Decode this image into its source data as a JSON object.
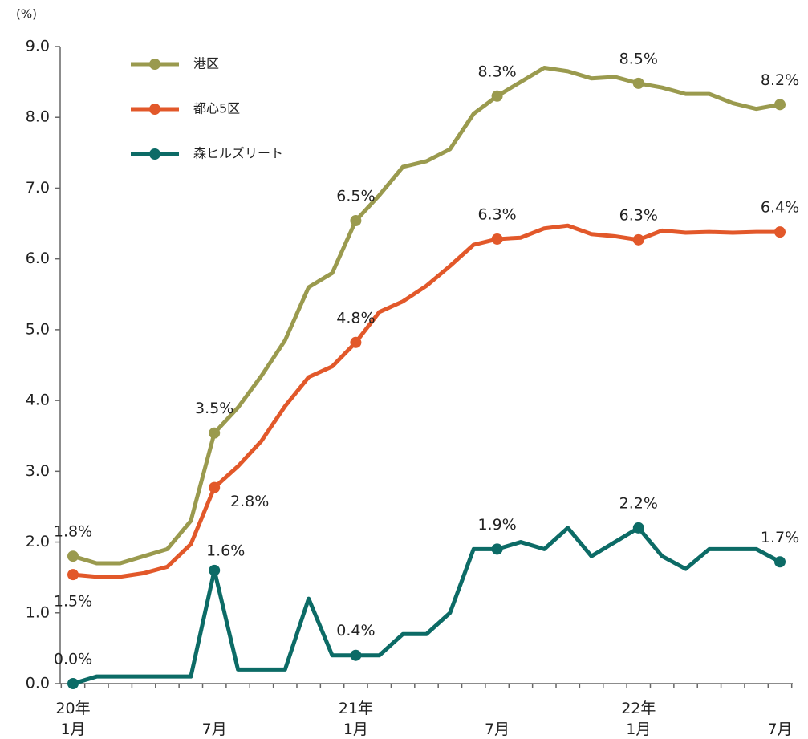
{
  "chart_data": {
    "type": "line",
    "y_label": "(%)",
    "categories": [
      "20年\n1月",
      null,
      null,
      null,
      null,
      null,
      "7月",
      null,
      null,
      null,
      null,
      null,
      "21年\n1月",
      null,
      null,
      null,
      null,
      null,
      "7月",
      null,
      null,
      null,
      null,
      null,
      "22年\n1月",
      null,
      null,
      null,
      null,
      null,
      "7月"
    ],
    "ylim": [
      0,
      9
    ],
    "yticks": [
      {
        "value": 0,
        "label": "0.0"
      },
      {
        "value": 1,
        "label": "1.0"
      },
      {
        "value": 2,
        "label": "2.0"
      },
      {
        "value": 3,
        "label": "3.0"
      },
      {
        "value": 4,
        "label": "4.0"
      },
      {
        "value": 5,
        "label": "5.0"
      },
      {
        "value": 6,
        "label": "6.0"
      },
      {
        "value": 7,
        "label": "7.0"
      },
      {
        "value": 8,
        "label": "8.0"
      },
      {
        "value": 9,
        "label": "9.0"
      }
    ],
    "legend": "upper left",
    "series": [
      {
        "name": "港区",
        "color": "#9a9a4e",
        "values": [
          1.8,
          1.7,
          1.7,
          1.8,
          1.9,
          2.3,
          3.54,
          3.9,
          4.35,
          4.85,
          5.6,
          5.8,
          6.54,
          6.9,
          7.3,
          7.38,
          7.55,
          8.05,
          8.3,
          8.5,
          8.7,
          8.65,
          8.55,
          8.57,
          8.48,
          8.42,
          8.33,
          8.33,
          8.2,
          8.12,
          8.18
        ],
        "value_labels": [
          "1.8%",
          null,
          null,
          null,
          null,
          null,
          "3.5%",
          null,
          null,
          null,
          null,
          null,
          "6.5%",
          null,
          null,
          null,
          null,
          null,
          "8.3%",
          null,
          null,
          null,
          null,
          null,
          "8.5%",
          null,
          null,
          null,
          null,
          null,
          "8.2%"
        ]
      },
      {
        "name": "都心5区",
        "color": "#e2582a",
        "values": [
          1.54,
          1.51,
          1.51,
          1.56,
          1.65,
          1.97,
          2.77,
          3.07,
          3.43,
          3.92,
          4.33,
          4.48,
          4.82,
          5.25,
          5.4,
          5.62,
          5.9,
          6.2,
          6.28,
          6.3,
          6.43,
          6.47,
          6.35,
          6.32,
          6.27,
          6.4,
          6.37,
          6.38,
          6.37,
          6.38,
          6.38
        ],
        "value_labels": [
          "1.5%",
          null,
          null,
          null,
          null,
          null,
          "2.8%",
          null,
          null,
          null,
          null,
          null,
          "4.8%",
          null,
          null,
          null,
          null,
          null,
          "6.3%",
          null,
          null,
          null,
          null,
          null,
          "6.3%",
          null,
          null,
          null,
          null,
          null,
          "6.4%"
        ]
      },
      {
        "name": "森ヒルズリート",
        "color": "#0c6b66",
        "values": [
          0.0,
          0.1,
          0.1,
          0.1,
          0.1,
          0.1,
          1.6,
          0.2,
          0.2,
          0.2,
          1.2,
          0.4,
          0.4,
          0.4,
          0.7,
          0.7,
          1.0,
          1.9,
          1.9,
          2.0,
          1.9,
          2.2,
          1.8,
          2.0,
          2.2,
          1.8,
          1.62,
          1.9,
          1.9,
          1.9,
          1.72
        ],
        "value_labels": [
          "0.0%",
          null,
          null,
          null,
          null,
          null,
          "1.6%",
          null,
          null,
          null,
          null,
          null,
          "0.4%",
          null,
          null,
          null,
          null,
          null,
          "1.9%",
          null,
          null,
          null,
          null,
          null,
          "2.2%",
          null,
          null,
          null,
          null,
          null,
          "1.7%"
        ]
      }
    ]
  }
}
